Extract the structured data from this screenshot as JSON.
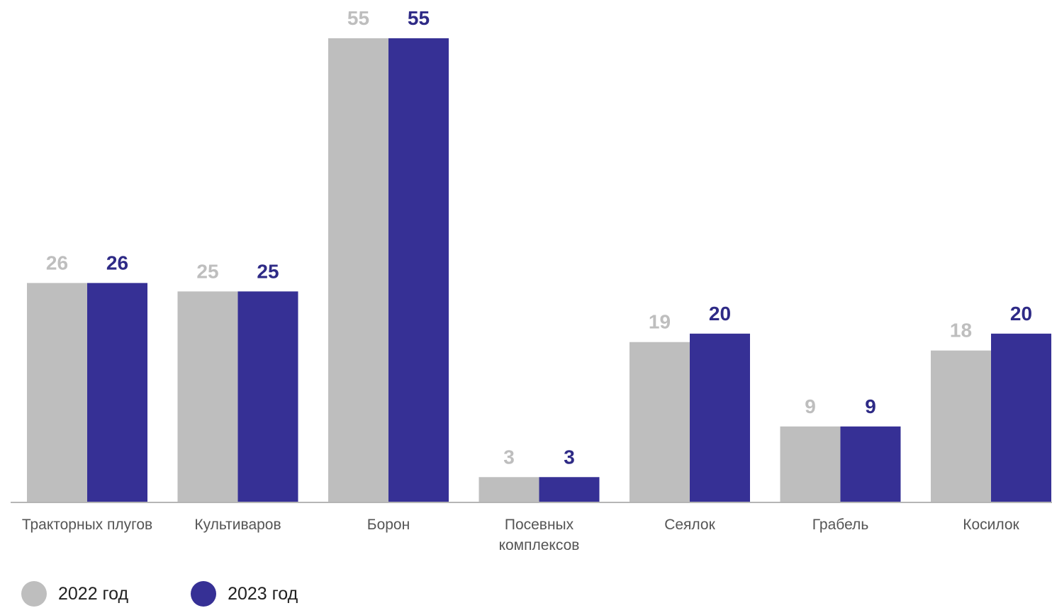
{
  "chart_data": {
    "type": "bar",
    "categories": [
      [
        "Тракторных плугов"
      ],
      [
        "Культиваров"
      ],
      [
        "Борон"
      ],
      [
        "Посевных",
        "комплексов"
      ],
      [
        "Сеялок"
      ],
      [
        "Грабель"
      ],
      [
        "Косилок"
      ]
    ],
    "series": [
      {
        "name": "2022 год",
        "values": [
          26,
          25,
          55,
          3,
          19,
          9,
          18
        ],
        "color": "#bebebe"
      },
      {
        "name": "2023 год",
        "values": [
          26,
          25,
          55,
          3,
          20,
          9,
          20
        ],
        "color": "#363095"
      }
    ],
    "ylim": [
      0,
      55
    ],
    "grid": false,
    "legend_position": "bottom-left",
    "label_colors": {
      "2022 год": "#bebebe",
      "2023 год": "#2e2a86"
    },
    "axis_color": "#b5b5b5"
  }
}
